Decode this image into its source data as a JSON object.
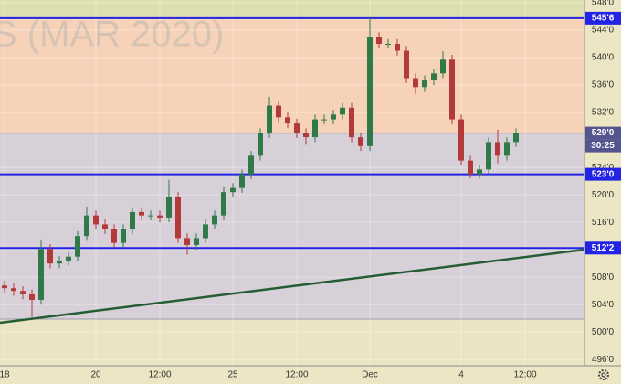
{
  "chart_data": {
    "type": "candlestick",
    "watermark": "S (MAR 2020)",
    "categories": [
      "18",
      null,
      null,
      null,
      null,
      null,
      null,
      null,
      null,
      null,
      "20",
      null,
      null,
      null,
      null,
      null,
      null,
      "12:00",
      null,
      null,
      null,
      null,
      null,
      null,
      null,
      "25",
      null,
      null,
      null,
      null,
      null,
      null,
      "12:00",
      null,
      null,
      null,
      null,
      null,
      null,
      null,
      "Dec",
      null,
      null,
      null,
      null,
      null,
      null,
      null,
      null,
      null,
      "4",
      null,
      null,
      null,
      null,
      null,
      null,
      "12:00",
      null,
      null,
      null,
      null,
      null,
      null
    ],
    "open": [
      506.8,
      506.4,
      506,
      505.5,
      504.7,
      512.1,
      510,
      510.4,
      511,
      514,
      517,
      515.7,
      515,
      513,
      515,
      517.5,
      517,
      517,
      516.7,
      519.7,
      513.7,
      512.7,
      513.7,
      515.7,
      517,
      520.4,
      521,
      523,
      525.7,
      529,
      533,
      531.3,
      530.4,
      529,
      528.4,
      531,
      531,
      531.7,
      532.7,
      528.4,
      527.1,
      543,
      542,
      542,
      541,
      537,
      535.7,
      536.7,
      537.7,
      539.7,
      531,
      525,
      523,
      523.7,
      527.7,
      525.7,
      527.7,
      null,
      null,
      null,
      null,
      null,
      null,
      null
    ],
    "high": [
      507.5,
      507.1,
      506.7,
      506.2,
      513.5,
      512.8,
      511.1,
      511.7,
      514.7,
      518.3,
      517.7,
      516.4,
      515.7,
      515.7,
      518.2,
      518.2,
      517.7,
      517.7,
      522.2,
      520.4,
      514.4,
      514.4,
      516.4,
      517.7,
      521.1,
      521.7,
      523.7,
      526.4,
      529.7,
      534.3,
      533.7,
      532,
      531.1,
      529.7,
      531.7,
      531.7,
      532.4,
      533.4,
      533.4,
      529.1,
      545.9,
      543.7,
      542.7,
      542.7,
      541.7,
      537.7,
      537.4,
      538.4,
      540.9,
      540.4,
      531.7,
      525.7,
      524.4,
      528.4,
      529.5,
      528.4,
      529.7,
      null,
      null,
      null,
      null,
      null,
      null,
      null
    ],
    "low": [
      505.7,
      505.3,
      504.8,
      502.2,
      504,
      509.3,
      509.3,
      509.7,
      510.3,
      513.3,
      515,
      514.3,
      512.3,
      512.3,
      514.3,
      516.3,
      516.3,
      516,
      516,
      513,
      511.3,
      512,
      513,
      515,
      516.3,
      519.7,
      520.3,
      522.3,
      525,
      528.3,
      530.6,
      529.7,
      528.3,
      527.3,
      527.7,
      530.3,
      530.3,
      531,
      527.7,
      526.4,
      526.4,
      541.3,
      541.3,
      540.3,
      536.3,
      534.7,
      535,
      536,
      537,
      530.3,
      524.3,
      522.4,
      522.4,
      523,
      524.6,
      525,
      527,
      null,
      null,
      null,
      null,
      null,
      null,
      null
    ],
    "close": [
      506.4,
      506,
      505.5,
      504.7,
      512.1,
      510,
      510.4,
      511,
      514,
      517,
      515.7,
      515,
      513,
      515,
      517.5,
      517,
      517,
      516.7,
      519.7,
      513.7,
      512.7,
      513.7,
      515.7,
      517,
      520.4,
      521,
      523,
      525.7,
      529,
      533,
      531.3,
      530.4,
      529,
      528.4,
      531,
      531,
      531.7,
      532.7,
      528.4,
      527.1,
      543,
      542,
      542,
      541,
      537,
      535.7,
      536.7,
      537.7,
      539.7,
      531,
      525,
      523,
      523.7,
      527.7,
      525.7,
      527.7,
      529,
      null,
      null,
      null,
      null,
      null,
      null,
      null
    ],
    "up_color": "#2f7a48",
    "down_color": "#b23a3a",
    "ylim": [
      495.1,
      548.4
    ],
    "yticks": [
      {
        "value": 548,
        "label": "548'0"
      },
      {
        "value": 544,
        "label": "544'0"
      },
      {
        "value": 540,
        "label": "540'0"
      },
      {
        "value": 536,
        "label": "536'0"
      },
      {
        "value": 532,
        "label": "532'0"
      },
      {
        "value": 524,
        "label": "524'0"
      },
      {
        "value": 520,
        "label": "520'0"
      },
      {
        "value": 516,
        "label": "516'0"
      },
      {
        "value": 512,
        "label": "512'0"
      },
      {
        "value": 508,
        "label": "508'0"
      },
      {
        "value": 504,
        "label": "504'0"
      },
      {
        "value": 500,
        "label": "500'0"
      },
      {
        "value": 496,
        "label": "496'0"
      }
    ],
    "grid": true,
    "levels": [
      {
        "value": 545.75,
        "label": "545'6",
        "color": "#2323e6"
      },
      {
        "value": 529,
        "label": "529'0",
        "color": "#54548f"
      },
      {
        "value": 523,
        "label": "523'0",
        "color": "#2323e6"
      },
      {
        "value": 512.25,
        "label": "512'2",
        "color": "#2323e6"
      }
    ],
    "countdown": "30:25"
  }
}
